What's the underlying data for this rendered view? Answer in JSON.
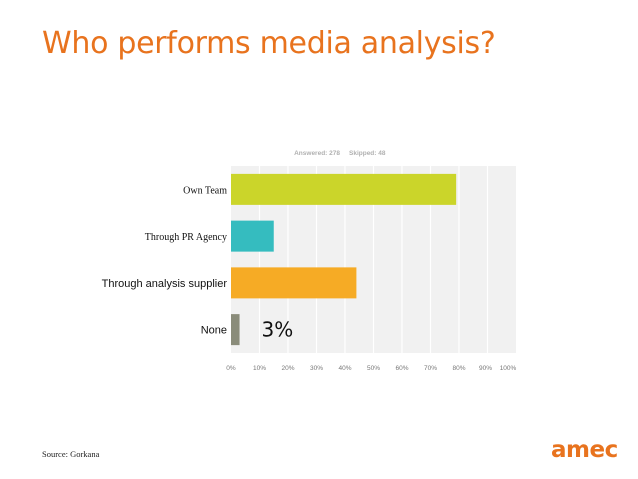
{
  "slide": {
    "title": "Who performs media analysis?",
    "source": "Source: Gorkana",
    "logo_text": "amec"
  },
  "chart_data": {
    "type": "bar",
    "orientation": "horizontal",
    "header": {
      "answered": "Answered: 278",
      "skipped": "Skipped: 48"
    },
    "categories": [
      "Own Team",
      "Through PR Agency",
      "Through analysis supplier",
      "None"
    ],
    "values": [
      79,
      15,
      44,
      3
    ],
    "colors": [
      "#cbd52a",
      "#35bcbf",
      "#f6ab25",
      "#8a8c7a"
    ],
    "annotation": {
      "category": "None",
      "text": "3%"
    },
    "xlim": [
      0,
      100
    ],
    "x_ticks": [
      0,
      10,
      20,
      30,
      40,
      50,
      60,
      70,
      80,
      90,
      100
    ],
    "x_tick_labels": [
      "0%",
      "10%",
      "20%",
      "30%",
      "40%",
      "50%",
      "60%",
      "70%",
      "80%",
      "90%",
      "100%"
    ],
    "grid": true,
    "plot_background": "#f1f1f1",
    "grid_color": "#ffffff"
  }
}
